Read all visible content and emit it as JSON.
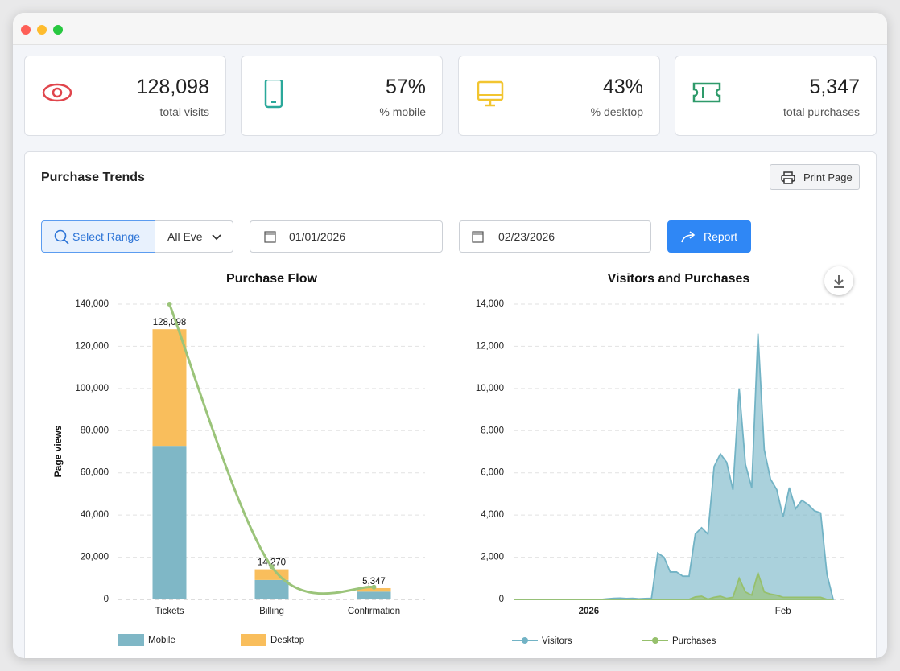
{
  "stats": [
    {
      "value": "128,098",
      "label": "total visits"
    },
    {
      "value": "57%",
      "label": "% mobile"
    },
    {
      "value": "43%",
      "label": "% desktop"
    },
    {
      "value": "5,347",
      "label": "total purchases"
    }
  ],
  "panel": {
    "title": "Purchase Trends",
    "print_button": "Print Page"
  },
  "filters": {
    "select_range": "Select Range",
    "event": "All Eve",
    "start_date": "01/01/2026",
    "end_date": "02/23/2026",
    "report": "Report"
  },
  "chart_data": [
    {
      "type": "bar",
      "title": "Purchase Flow",
      "y_label": "Page views",
      "categories": [
        "Tickets",
        "Billing",
        "Confirmation"
      ],
      "series": [
        {
          "name": "Mobile",
          "color": "#7fb7c6",
          "values": [
            72800,
            9200,
            3700
          ]
        },
        {
          "name": "Desktop",
          "color": "#f9be5c",
          "values": [
            55298,
            5070,
            1647
          ]
        }
      ],
      "totals": {
        "values": [
          128098,
          14270,
          5347
        ],
        "value_labels": [
          "128,098",
          "14,270",
          "5,347"
        ]
      },
      "line": {
        "color": "#9bc47a",
        "values": [
          140000,
          15500,
          5800
        ]
      },
      "ylim": [
        0,
        140000
      ],
      "yticks": [
        0,
        {
          "value": 20000,
          "label": "20,000"
        },
        {
          "value": 40000,
          "label": "40,000"
        },
        {
          "value": 60000,
          "label": "60,000"
        },
        {
          "value": 80000,
          "label": "80,000"
        },
        {
          "value": 100000,
          "label": "100,000"
        },
        {
          "value": 120000,
          "label": "120,000"
        },
        {
          "value": 140000,
          "label": "140,000"
        }
      ],
      "grid": true
    },
    {
      "type": "area",
      "title": "Visitors and Purchases",
      "categories": [
        null,
        null,
        null,
        null,
        null,
        null,
        null,
        null,
        null,
        null,
        null,
        null,
        "2026",
        null,
        null,
        null,
        null,
        null,
        null,
        null,
        null,
        null,
        null,
        null,
        null,
        null,
        null,
        null,
        null,
        null,
        null,
        null,
        null,
        null,
        null,
        null,
        null,
        null,
        null,
        null,
        null,
        null,
        null,
        "Feb",
        null,
        null,
        null,
        null,
        null,
        null,
        null,
        null
      ],
      "series": [
        {
          "name": "Visitors",
          "color": "#72b3c5",
          "values": [
            0,
            0,
            0,
            0,
            0,
            0,
            0,
            0,
            0,
            0,
            0,
            0,
            0,
            0,
            0,
            30,
            50,
            60,
            40,
            50,
            30,
            40,
            50,
            2200,
            2000,
            1300,
            1300,
            1100,
            1100,
            3100,
            3400,
            3100,
            6300,
            6900,
            6500,
            5200,
            10000,
            6400,
            5300,
            12600,
            7100,
            5700,
            5200,
            3900,
            5300,
            4300,
            4700,
            4500,
            4200,
            4100,
            1200,
            0
          ]
        },
        {
          "name": "Purchases",
          "color": "#96c06c",
          "values": [
            0,
            0,
            0,
            0,
            0,
            0,
            0,
            0,
            0,
            0,
            0,
            0,
            0,
            0,
            0,
            0,
            0,
            0,
            0,
            0,
            0,
            0,
            0,
            0,
            0,
            0,
            0,
            0,
            0,
            120,
            150,
            10,
            100,
            150,
            50,
            100,
            1000,
            350,
            200,
            1250,
            350,
            250,
            200,
            100,
            100,
            100,
            100,
            100,
            100,
            100,
            0,
            0
          ]
        }
      ],
      "ylim": [
        0,
        14000
      ],
      "yticks": [
        0,
        {
          "value": 2000,
          "label": "2,000"
        },
        {
          "value": 4000,
          "label": "4,000"
        },
        {
          "value": 6000,
          "label": "6,000"
        },
        {
          "value": 8000,
          "label": "8,000"
        },
        {
          "value": 10000,
          "label": "10,000"
        },
        {
          "value": 12000,
          "label": "12,000"
        },
        {
          "value": 14000,
          "label": "14,000"
        }
      ],
      "grid": true
    }
  ]
}
